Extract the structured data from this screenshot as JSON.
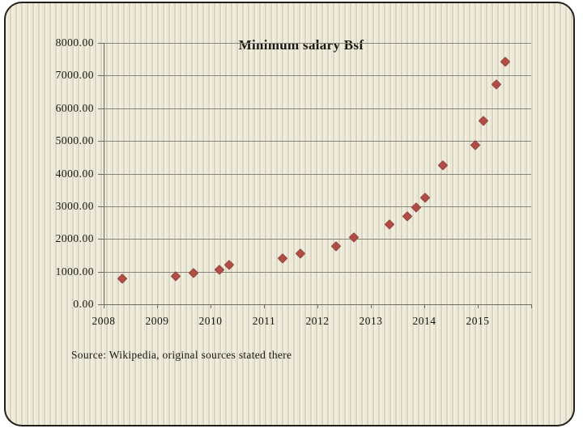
{
  "slide": {
    "title": "Minimum salary Bsf",
    "source_note": "Source: Wikipedia, original sources stated there"
  },
  "colors": {
    "marker_fill": "#b04e46",
    "marker_border": "#94423b",
    "slide_background_base": "#f1eedf",
    "slide_background_stripe": "#d9d5c1",
    "slide_border": "#221f1a",
    "gridline": "#85857c",
    "axis": "#6b6b62",
    "text": "#181611",
    "page_background": "#ffffff"
  },
  "chart_data": {
    "type": "scatter",
    "title": "Minimum salary Bsf",
    "xlabel": "",
    "ylabel": "",
    "xlim": [
      2008,
      2016
    ],
    "ylim": [
      0,
      8000
    ],
    "grid": "horizontal-only",
    "legend_position": "none",
    "marker_shape": "diamond",
    "x_tick_labels": [
      "2008",
      "2009",
      "2010",
      "2011",
      "2012",
      "2013",
      "2014",
      "2015"
    ],
    "x_tick_values": [
      2008,
      2009,
      2010,
      2011,
      2012,
      2013,
      2014,
      2015
    ],
    "y_tick_labels": [
      "8000.00",
      "7000.00",
      "6000.00",
      "5000.00",
      "4000.00",
      "3000.00",
      "2000.00",
      "1000.00",
      "0.00"
    ],
    "y_tick_values": [
      8000,
      7000,
      6000,
      5000,
      4000,
      3000,
      2000,
      1000,
      0
    ],
    "series": [
      {
        "name": "Minimum salary Bsf",
        "points": [
          {
            "x": 2008.35,
            "y": 799
          },
          {
            "x": 2009.35,
            "y": 879
          },
          {
            "x": 2009.68,
            "y": 959
          },
          {
            "x": 2010.17,
            "y": 1064
          },
          {
            "x": 2010.35,
            "y": 1224
          },
          {
            "x": 2011.35,
            "y": 1407
          },
          {
            "x": 2011.68,
            "y": 1548
          },
          {
            "x": 2012.35,
            "y": 1780
          },
          {
            "x": 2012.68,
            "y": 2048
          },
          {
            "x": 2013.35,
            "y": 2457
          },
          {
            "x": 2013.68,
            "y": 2703
          },
          {
            "x": 2013.85,
            "y": 2973
          },
          {
            "x": 2014.02,
            "y": 3270
          },
          {
            "x": 2014.35,
            "y": 4251
          },
          {
            "x": 2014.95,
            "y": 4889
          },
          {
            "x": 2015.1,
            "y": 5622
          },
          {
            "x": 2015.35,
            "y": 6747
          },
          {
            "x": 2015.52,
            "y": 7422
          }
        ]
      }
    ]
  }
}
